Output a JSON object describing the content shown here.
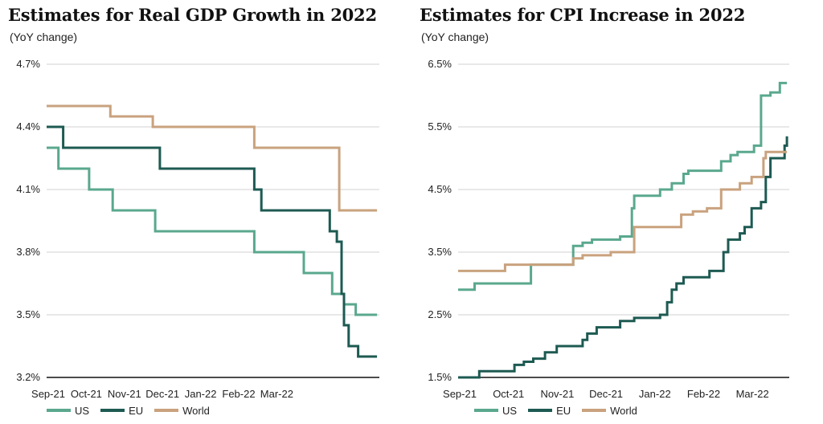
{
  "colors": {
    "US": "#5aa88e",
    "EU": "#1d5a52",
    "World": "#c9a27e",
    "grid": "#d9d9d9",
    "axis": "#111111"
  },
  "legend": [
    {
      "name": "US",
      "color": "#5aa88e"
    },
    {
      "name": "EU",
      "color": "#1d5a52"
    },
    {
      "name": "World",
      "color": "#c9a27e"
    }
  ],
  "charts": [
    {
      "title": "Estimates for Real GDP Growth in 2022",
      "subtitle": "(YoY change)"
    },
    {
      "title": "Estimates for CPI Increase in 2022",
      "subtitle": "(YoY change)"
    }
  ],
  "chart_data": [
    {
      "type": "line",
      "title": "Estimates for Real GDP Growth in 2022",
      "subtitle": "(YoY change)",
      "x_ticks": [
        "Sep-21",
        "Oct-21",
        "Nov-21",
        "Dec-21",
        "Jan-22",
        "Feb-22",
        "Mar-22"
      ],
      "y_ticks": [
        "3.2%",
        "3.5%",
        "3.8%",
        "4.1%",
        "4.4%",
        "4.7%"
      ],
      "ylim": [
        3.2,
        4.7
      ],
      "xlim": [
        0,
        7.05
      ],
      "grid": true,
      "legend_position": "bottom",
      "step": true,
      "series": [
        {
          "name": "US",
          "points": [
            [
              0,
              4.3
            ],
            [
              0.25,
              4.2
            ],
            [
              0.9,
              4.1
            ],
            [
              1.4,
              4.0
            ],
            [
              2.3,
              3.9
            ],
            [
              4.4,
              3.8
            ],
            [
              5.45,
              3.7
            ],
            [
              6.05,
              3.6
            ],
            [
              6.3,
              3.55
            ],
            [
              6.55,
              3.5
            ],
            [
              7.0,
              3.5
            ]
          ]
        },
        {
          "name": "EU",
          "points": [
            [
              0,
              4.4
            ],
            [
              0.35,
              4.3
            ],
            [
              2.4,
              4.2
            ],
            [
              4.4,
              4.1
            ],
            [
              4.55,
              4.0
            ],
            [
              6.0,
              3.9
            ],
            [
              6.15,
              3.85
            ],
            [
              6.25,
              3.6
            ],
            [
              6.3,
              3.45
            ],
            [
              6.4,
              3.35
            ],
            [
              6.6,
              3.3
            ],
            [
              7.0,
              3.3
            ]
          ]
        },
        {
          "name": "World",
          "points": [
            [
              0,
              4.5
            ],
            [
              1.35,
              4.45
            ],
            [
              2.25,
              4.4
            ],
            [
              4.4,
              4.3
            ],
            [
              6.2,
              4.0
            ],
            [
              7.0,
              4.0
            ]
          ]
        }
      ]
    },
    {
      "type": "line",
      "title": "Estimates for CPI Increase in 2022",
      "subtitle": "(YoY change)",
      "x_ticks": [
        "Sep-21",
        "Oct-21",
        "Nov-21",
        "Dec-21",
        "Jan-22",
        "Feb-22",
        "Mar-22"
      ],
      "y_ticks": [
        "1.5%",
        "2.5%",
        "3.5%",
        "4.5%",
        "5.5%",
        "6.5%"
      ],
      "ylim": [
        1.5,
        6.5
      ],
      "xlim": [
        0,
        7.05
      ],
      "grid": true,
      "legend_position": "bottom",
      "step": true,
      "series": [
        {
          "name": "US",
          "points": [
            [
              0,
              2.9
            ],
            [
              0.35,
              3.0
            ],
            [
              1.55,
              3.3
            ],
            [
              2.45,
              3.6
            ],
            [
              2.65,
              3.65
            ],
            [
              2.85,
              3.7
            ],
            [
              3.45,
              3.75
            ],
            [
              3.7,
              4.2
            ],
            [
              3.75,
              4.4
            ],
            [
              4.3,
              4.5
            ],
            [
              4.55,
              4.6
            ],
            [
              4.8,
              4.75
            ],
            [
              4.9,
              4.8
            ],
            [
              5.6,
              4.95
            ],
            [
              5.8,
              5.05
            ],
            [
              5.95,
              5.1
            ],
            [
              6.3,
              5.2
            ],
            [
              6.45,
              6.0
            ],
            [
              6.65,
              6.05
            ],
            [
              6.85,
              6.2
            ],
            [
              7.0,
              6.2
            ]
          ]
        },
        {
          "name": "EU",
          "points": [
            [
              0,
              1.5
            ],
            [
              0.45,
              1.6
            ],
            [
              1.2,
              1.7
            ],
            [
              1.4,
              1.75
            ],
            [
              1.6,
              1.8
            ],
            [
              1.85,
              1.9
            ],
            [
              2.1,
              2.0
            ],
            [
              2.65,
              2.1
            ],
            [
              2.75,
              2.2
            ],
            [
              2.95,
              2.3
            ],
            [
              3.45,
              2.4
            ],
            [
              3.75,
              2.45
            ],
            [
              4.3,
              2.5
            ],
            [
              4.45,
              2.7
            ],
            [
              4.55,
              2.9
            ],
            [
              4.65,
              3.0
            ],
            [
              4.8,
              3.1
            ],
            [
              5.25,
              3.1
            ],
            [
              5.35,
              3.2
            ],
            [
              5.65,
              3.5
            ],
            [
              5.75,
              3.7
            ],
            [
              6.0,
              3.8
            ],
            [
              6.1,
              3.9
            ],
            [
              6.25,
              4.2
            ],
            [
              6.45,
              4.3
            ],
            [
              6.55,
              4.7
            ],
            [
              6.65,
              5.0
            ],
            [
              6.95,
              5.2
            ],
            [
              7.0,
              5.35
            ]
          ]
        },
        {
          "name": "World",
          "points": [
            [
              0,
              3.2
            ],
            [
              1.0,
              3.3
            ],
            [
              2.45,
              3.4
            ],
            [
              2.65,
              3.45
            ],
            [
              3.25,
              3.5
            ],
            [
              3.75,
              3.9
            ],
            [
              4.75,
              4.1
            ],
            [
              5.0,
              4.15
            ],
            [
              5.3,
              4.2
            ],
            [
              5.6,
              4.5
            ],
            [
              6.0,
              4.6
            ],
            [
              6.25,
              4.7
            ],
            [
              6.5,
              5.0
            ],
            [
              6.55,
              5.1
            ],
            [
              7.0,
              5.1
            ]
          ]
        }
      ]
    }
  ]
}
